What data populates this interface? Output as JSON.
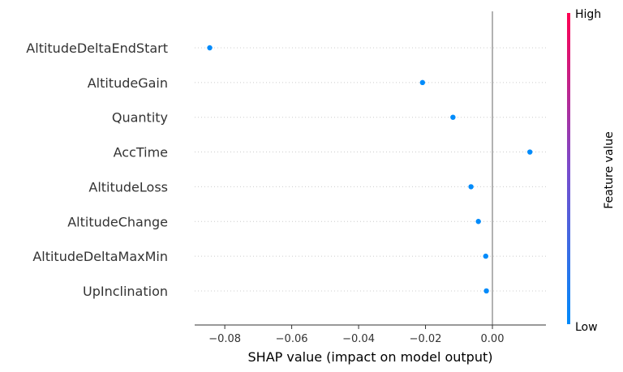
{
  "chart_data": {
    "type": "scatter",
    "subtype": "shap-beeswarm",
    "features": [
      "AltitudeDeltaEndStart",
      "AltitudeGain",
      "Quantity",
      "AccTime",
      "AltitudeLoss",
      "AltitudeChange",
      "AltitudeDeltaMaxMin",
      "UpInclination"
    ],
    "values": [
      -0.0845,
      -0.0209,
      -0.0118,
      0.0112,
      -0.0064,
      -0.0042,
      -0.002,
      -0.0018
    ],
    "xlabel": "SHAP value (impact on model output)",
    "xlim": [
      -0.089,
      0.016
    ],
    "xticks": [
      -0.08,
      -0.06,
      -0.04,
      -0.02,
      0.0
    ],
    "xtick_labels": [
      "−0.08",
      "−0.06",
      "−0.04",
      "−0.02",
      "0.00"
    ],
    "zero_line": 0.0,
    "point_color": "#008bfb",
    "colorbar": {
      "title": "Feature value",
      "high_label": "High",
      "low_label": "Low",
      "high_color": "#ff0052",
      "mid_color": "#7a4ccc",
      "low_color": "#008bfb"
    }
  }
}
